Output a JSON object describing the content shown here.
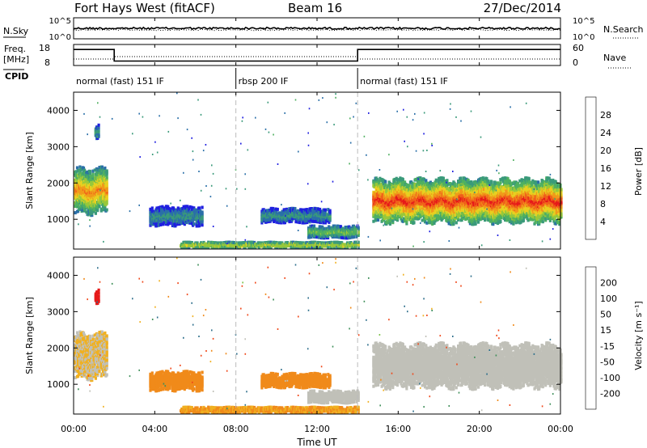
{
  "header": {
    "title": "Fort Hays West (fitACF)",
    "beam": "Beam 16",
    "date": "27/Dec/2014"
  },
  "nsky_panel": {
    "left_label": "N.Sky",
    "left_ticks": [
      "10^5",
      "10^0"
    ],
    "right_ticks": [
      "10^5",
      "10^0"
    ],
    "right_label": "N.Search"
  },
  "freq_panel": {
    "left_label_line1": "Freq.",
    "left_label_line2": "[MHz]",
    "left_ticks": [
      "18",
      "8"
    ],
    "right_ticks": [
      "60",
      "0"
    ],
    "right_label": "Nave"
  },
  "cpid": {
    "label": "CPID",
    "segments": [
      {
        "label": "normal (fast) 151 IF",
        "start_h": 0,
        "end_h": 8
      },
      {
        "label": "rbsp 200 IF",
        "start_h": 8,
        "end_h": 14
      },
      {
        "label": "normal (fast) 151 IF",
        "start_h": 14,
        "end_h": 24
      }
    ]
  },
  "colors": {
    "power_scale": [
      "#1f1fe0",
      "#2a6fa8",
      "#3a9a7a",
      "#4fb060",
      "#98c83a",
      "#e8d020",
      "#f09a1a",
      "#f0601a",
      "#e61a1a"
    ],
    "velocity_scale": [
      "#1f1fb0",
      "#2e6f8c",
      "#3f8f5a",
      "#7cc34a",
      "#c8c8c0",
      "#f0b020",
      "#f08a1a",
      "#f0481a",
      "#e61a1a"
    ],
    "ground_scatter": "#c0c0b8"
  },
  "power_colorbar": {
    "label": "Power [dB]",
    "ticks": [
      "28",
      "24",
      "20",
      "16",
      "12",
      "8",
      "4"
    ]
  },
  "velocity_colorbar": {
    "label": "Velocity [m s⁻¹]",
    "ticks": [
      "200",
      "100",
      "50",
      "15",
      "-15",
      "-50",
      "-100",
      "-200"
    ]
  },
  "chart_data": {
    "type": "heatmap",
    "xlabel": "Time UT",
    "ylabel": "Slant Range [km]",
    "xlim": [
      0,
      24
    ],
    "ylim": [
      180,
      4500
    ],
    "x_ticks": [
      "00:00",
      "04:00",
      "08:00",
      "12:00",
      "16:00",
      "20:00",
      "00:00"
    ],
    "y_ticks": [
      "1000",
      "2000",
      "3000",
      "4000"
    ],
    "freq_steps": [
      {
        "start_h": 0.0,
        "end_h": 2.0,
        "freq_mhz": 17
      },
      {
        "start_h": 2.0,
        "end_h": 14.0,
        "freq_mhz": 10.5
      },
      {
        "start_h": 14.0,
        "end_h": 24.0,
        "freq_mhz": 17
      }
    ],
    "echo_regions": [
      {
        "name": "early ionospheric band",
        "t0": 0.0,
        "t1": 1.6,
        "r0": 1150,
        "r1": 2400,
        "power_db": 22,
        "velocity": -15
      },
      {
        "name": "evening ionospheric band",
        "t0": 3.7,
        "t1": 6.3,
        "r0": 820,
        "r1": 1350,
        "power_db": 9,
        "velocity": -60
      },
      {
        "name": "midday ionospheric band",
        "t0": 9.2,
        "t1": 12.6,
        "r0": 900,
        "r1": 1300,
        "power_db": 9,
        "velocity": -60
      },
      {
        "name": "ground scatter tail",
        "t0": 11.5,
        "t1": 14.0,
        "r0": 480,
        "r1": 820,
        "power_db": 14,
        "velocity": 0
      },
      {
        "name": "late strong band",
        "t0": 14.7,
        "t1": 24.0,
        "r0": 900,
        "r1": 2100,
        "power_db": 26,
        "velocity": 0
      },
      {
        "name": "near-range echoes",
        "t0": 5.2,
        "t1": 14.0,
        "r0": 200,
        "r1": 380,
        "power_db": 18,
        "velocity": -40
      },
      {
        "name": "high-range patch",
        "t0": 1.0,
        "t1": 1.2,
        "r0": 3200,
        "r1": 3600,
        "power_db": 10,
        "velocity": -220
      }
    ]
  }
}
